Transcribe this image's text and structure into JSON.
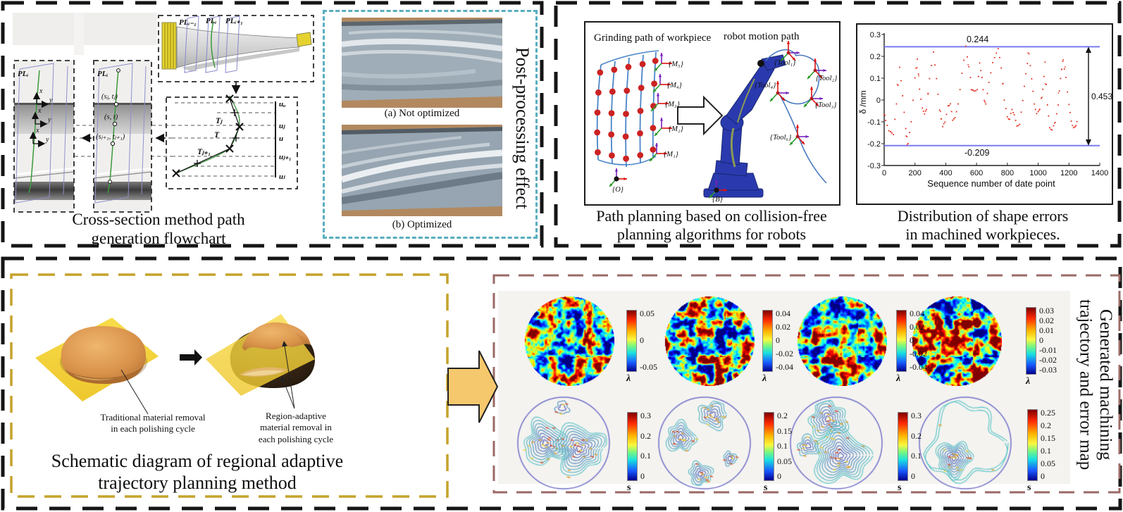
{
  "colors": {
    "teal_border": "#57aebe",
    "yellow_border": "#c6a22b",
    "brown_border": "#9a6a66",
    "black_border": "#151515",
    "gold_arrow": "#f6c86d",
    "data_red": "#e03222",
    "limit_blue": "#7a7af0",
    "robot_blue": "#2a3aae",
    "dot_red": "#cc2222"
  },
  "fig": {
    "tl": {
      "cap1": "Cross-section method path",
      "cap2": "generation flowchart",
      "pl_prev": "PLᵢ₋₁",
      "pl_i": "PLᵢ",
      "pl_next": "PLᵢ₊₁",
      "pl_a": "PLᵢ",
      "pl_b": "PLᵢ",
      "ax_x": "x",
      "ax_y": "y",
      "p1": "(sⱼ, tⱼ)",
      "p2": "(s, t)",
      "p3": "(sⱼ₊₁, tⱼ₊₁)",
      "tj": "Tⱼ",
      "t": "T",
      "tj1": "Tⱼ₊₁",
      "uu": "uᵤ",
      "uj": "uⱼ",
      "u": "u",
      "uj1": "uⱼ₊₁",
      "ul": "uₗ"
    },
    "pp": {
      "title": "Post-processing effect",
      "cap_a": "(a) Not optimized",
      "cap_b": "(b) Optimized"
    },
    "rob": {
      "t_left": "Grinding path of workpiece",
      "t_right": "robot motion path",
      "m5": "{M₅}",
      "m4": "{M₄}",
      "m3": "{M₃}",
      "m2": "{M₂}",
      "m1": "{M₁}",
      "o": "{O}",
      "b": "{B}",
      "tool1": "{Tool₁}",
      "tool2": "{Tool₂}",
      "tool3": "{Tool₃}",
      "tool4": "{Tool₄}",
      "tool6": "{Tool₆}",
      "cap1": "Path planning based on collision-free",
      "cap2": "planning algorithms for robots"
    },
    "err": {
      "cap1": "Distribution of shape errors",
      "cap2": "in machined workpieces.",
      "hi": "0.244",
      "lo": "-0.209",
      "range": "0.453",
      "ylab": "δ /mm",
      "xlab": "Sequence number of date point",
      "yticks": [
        "0.3",
        "0.2",
        "0.1",
        "0",
        "-0.1",
        "-0.2",
        "-0.3"
      ],
      "xticks": [
        "0",
        "200",
        "400",
        "600",
        "800",
        "1000",
        "1200",
        "1400"
      ]
    },
    "sch": {
      "l1a": "Traditional material removal",
      "l1b": "in each polishing cycle",
      "r1": "Region-adaptive",
      "r2": "material removal in",
      "r3": "each polishing cycle",
      "cap1": "Schematic diagram of regional adaptive",
      "cap2": "trajectory planning method"
    },
    "maps": {
      "vt1": "Generated machining",
      "vt2": "trajectory and error map",
      "hm": [
        {
          "ticks": [
            "0.05",
            "0",
            "-0.05"
          ],
          "label": "λ"
        },
        {
          "ticks": [
            "0.04",
            "0.02",
            "0",
            "-0.02",
            "-0.04"
          ],
          "label": "λ"
        },
        {
          "ticks": [
            "0.04",
            "0.02",
            "0",
            "-0.02",
            "-0.04"
          ],
          "label": "λ"
        },
        {
          "ticks": [
            "0.03",
            "0.02",
            "0.01",
            "0",
            "-0.01",
            "-0.02",
            "-0.03"
          ],
          "label": "λ"
        }
      ],
      "ct": [
        {
          "ticks": [
            "0.3",
            "0.2",
            "0.1",
            "0"
          ],
          "label": "s"
        },
        {
          "ticks": [
            "0.2",
            "0.15",
            "0.1",
            "0.05",
            "0"
          ],
          "label": "s"
        },
        {
          "ticks": [
            "0.3",
            "0.2",
            "0.1",
            "0"
          ],
          "label": "s"
        },
        {
          "ticks": [
            "0.25",
            "0.2",
            "0.15",
            "0.1",
            "0.05",
            "0"
          ],
          "label": "s"
        }
      ]
    }
  },
  "chart_data": {
    "type": "scatter",
    "title": "",
    "xlabel": "Sequence number of date point",
    "ylabel": "δ /mm",
    "xlim": [
      0,
      1400
    ],
    "ylim": [
      -0.3,
      0.3
    ],
    "upper_limit": 0.244,
    "lower_limit": -0.209,
    "range_annotation": 0.453,
    "legend": "none",
    "grid": false,
    "points": [
      [
        0,
        -0.07
      ],
      [
        30,
        -0.14
      ],
      [
        60,
        -0.16
      ],
      [
        80,
        -0.02
      ],
      [
        100,
        0.15
      ],
      [
        120,
        0.02
      ],
      [
        140,
        -0.13
      ],
      [
        155,
        -0.2
      ],
      [
        175,
        -0.1
      ],
      [
        200,
        0.1
      ],
      [
        215,
        0.185
      ],
      [
        230,
        0.05
      ],
      [
        248,
        -0.04
      ],
      [
        262,
        -0.06
      ],
      [
        275,
        -0.04
      ],
      [
        295,
        0.1
      ],
      [
        320,
        0.22
      ],
      [
        340,
        0.1
      ],
      [
        360,
        -0.05
      ],
      [
        380,
        -0.12
      ],
      [
        395,
        -0.1
      ],
      [
        415,
        -0.03
      ],
      [
        430,
        -0.02
      ],
      [
        445,
        -0.09
      ],
      [
        460,
        -0.08
      ],
      [
        480,
        -0.02
      ],
      [
        505,
        0.12
      ],
      [
        530,
        0.244
      ],
      [
        550,
        0.15
      ],
      [
        570,
        0.05
      ],
      [
        585,
        0.04
      ],
      [
        605,
        0.05
      ],
      [
        620,
        0.17
      ],
      [
        635,
        0.1
      ],
      [
        650,
        0.0
      ],
      [
        660,
        -0.02
      ],
      [
        680,
        0.08
      ],
      [
        705,
        0.17
      ],
      [
        740,
        0.238
      ],
      [
        760,
        0.15
      ],
      [
        780,
        0.0
      ],
      [
        800,
        -0.08
      ],
      [
        815,
        -0.09
      ],
      [
        830,
        -0.04
      ],
      [
        845,
        -0.07
      ],
      [
        862,
        -0.12
      ],
      [
        880,
        -0.11
      ],
      [
        900,
        0.0
      ],
      [
        920,
        0.12
      ],
      [
        940,
        0.215
      ],
      [
        958,
        0.1
      ],
      [
        975,
        -0.02
      ],
      [
        990,
        -0.06
      ],
      [
        1010,
        -0.04
      ],
      [
        1030,
        0.05
      ],
      [
        1045,
        0.17
      ],
      [
        1060,
        -0.02
      ],
      [
        1075,
        -0.13
      ],
      [
        1090,
        -0.14
      ],
      [
        1110,
        -0.1
      ],
      [
        1130,
        -0.02
      ],
      [
        1145,
        0.1
      ],
      [
        1160,
        0.18
      ],
      [
        1180,
        0.1
      ],
      [
        1200,
        -0.02
      ],
      [
        1215,
        -0.1
      ],
      [
        1230,
        -0.13
      ],
      [
        1245,
        -0.12
      ],
      [
        1258,
        -0.08
      ]
    ]
  }
}
